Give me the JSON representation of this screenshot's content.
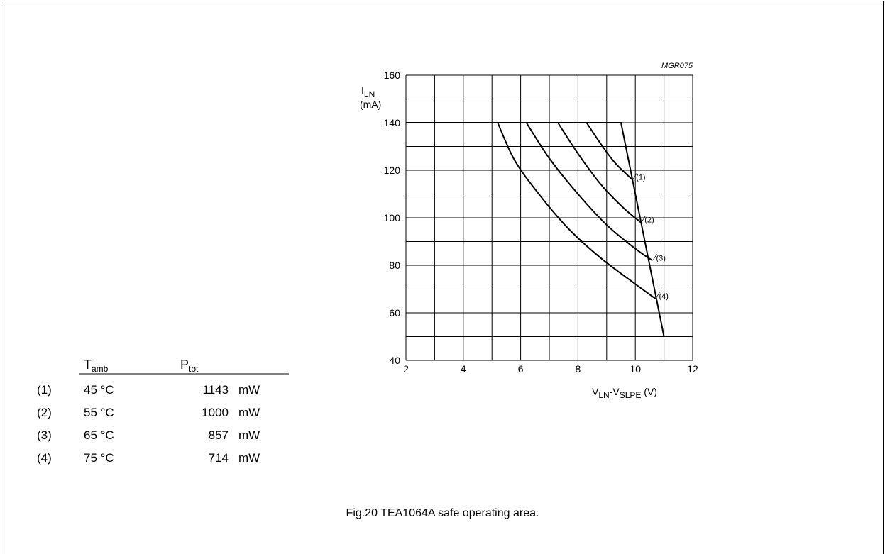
{
  "chart_data": {
    "type": "line",
    "code": "MGR075",
    "y_axis": {
      "symbol": "I",
      "subscript": "LN",
      "unit": "(mA)",
      "min": 40,
      "max": 160,
      "ticks": [
        "40",
        "60",
        "80",
        "100",
        "120",
        "140",
        "160"
      ]
    },
    "x_axis": {
      "label_v1": "V",
      "label_sub1": "LN",
      "label_dash": "-",
      "label_v2": "V",
      "label_sub2": "SLPE",
      "unit": "(V)",
      "min": 2,
      "max": 12,
      "ticks": [
        "2",
        "4",
        "6",
        "8",
        "10",
        "12"
      ]
    },
    "grid": true,
    "limit": [
      [
        2,
        140
      ],
      [
        9.5,
        140
      ],
      [
        11,
        50
      ]
    ],
    "series": [
      {
        "name": "(1)",
        "points": [
          [
            8.3,
            140
          ],
          [
            8.8,
            131
          ],
          [
            9.3,
            123
          ],
          [
            9.9,
            116
          ]
        ]
      },
      {
        "name": "(2)",
        "points": [
          [
            7.3,
            140
          ],
          [
            8.0,
            127
          ],
          [
            8.8,
            114
          ],
          [
            9.6,
            104
          ],
          [
            10.2,
            98
          ]
        ]
      },
      {
        "name": "(3)",
        "points": [
          [
            6.2,
            140
          ],
          [
            7.0,
            125
          ],
          [
            8.0,
            110
          ],
          [
            9.0,
            97
          ],
          [
            10.0,
            87
          ],
          [
            10.6,
            82
          ]
        ]
      },
      {
        "name": "(4)",
        "points": [
          [
            5.2,
            140
          ],
          [
            5.8,
            124
          ],
          [
            6.7,
            109
          ],
          [
            7.7,
            95
          ],
          [
            8.8,
            83
          ],
          [
            9.9,
            73
          ],
          [
            10.7,
            66
          ]
        ]
      }
    ]
  },
  "legend": {
    "head_t": "T",
    "head_t_sub": "amb",
    "head_p": "P",
    "head_p_sub": "tot",
    "rows": [
      {
        "id": "(1)",
        "temp": "45 °C",
        "power": "1143",
        "unit": "mW"
      },
      {
        "id": "(2)",
        "temp": "55 °C",
        "power": "1000",
        "unit": "mW"
      },
      {
        "id": "(3)",
        "temp": "65 °C",
        "power": "857",
        "unit": "mW"
      },
      {
        "id": "(4)",
        "temp": "75 °C",
        "power": "714",
        "unit": "mW"
      }
    ]
  },
  "caption": "Fig.20  TEA1064A safe operating area."
}
